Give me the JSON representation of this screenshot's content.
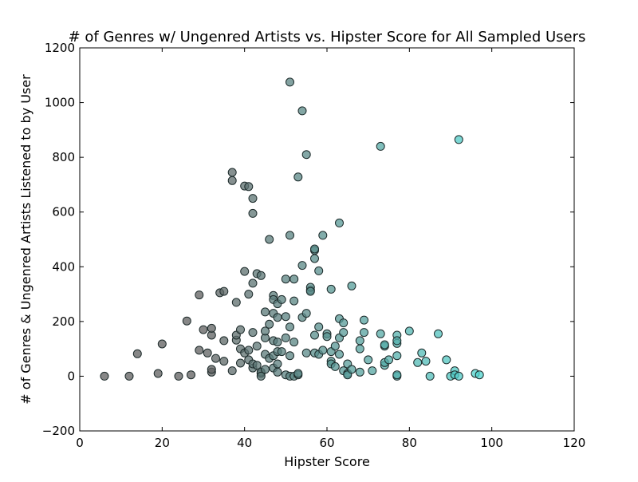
{
  "chart_data": {
    "type": "scatter",
    "title": "# of Genres w/ Ungenred Artists vs. Hipster Score for All Sampled Users",
    "xlabel": "Hipster Score",
    "ylabel": "# of Genres & Ungenred Artists Listened to by User",
    "xlim": [
      0,
      120
    ],
    "ylim": [
      -200,
      1200
    ],
    "x_ticks": [
      "0",
      "20",
      "40",
      "60",
      "80",
      "100",
      "120"
    ],
    "y_ticks": [
      "−200",
      "0",
      "200",
      "400",
      "600",
      "800",
      "1000",
      "1200"
    ],
    "grid": false,
    "legend": "none",
    "colors": {
      "low_score": "#5f5f5f",
      "high_score": "#4ed8d2",
      "marker_edge": "#1c2a2a",
      "axes": "#000000"
    },
    "points": [
      [
        6,
        0
      ],
      [
        12,
        0
      ],
      [
        14,
        82
      ],
      [
        19,
        10
      ],
      [
        20,
        118
      ],
      [
        24,
        0
      ],
      [
        26,
        202
      ],
      [
        27,
        5
      ],
      [
        29,
        95
      ],
      [
        29,
        297
      ],
      [
        30,
        170
      ],
      [
        31,
        85
      ],
      [
        32,
        15
      ],
      [
        32,
        150
      ],
      [
        32,
        175
      ],
      [
        32,
        25
      ],
      [
        33,
        65
      ],
      [
        34,
        305
      ],
      [
        35,
        310
      ],
      [
        35,
        130
      ],
      [
        35,
        55
      ],
      [
        37,
        20
      ],
      [
        37,
        745
      ],
      [
        37,
        715
      ],
      [
        38,
        270
      ],
      [
        38,
        132
      ],
      [
        38,
        150
      ],
      [
        39,
        48
      ],
      [
        39,
        170
      ],
      [
        39,
        100
      ],
      [
        40,
        85
      ],
      [
        40,
        383
      ],
      [
        40,
        695
      ],
      [
        41,
        300
      ],
      [
        41,
        60
      ],
      [
        41,
        95
      ],
      [
        41,
        693
      ],
      [
        42,
        650
      ],
      [
        42,
        595
      ],
      [
        42,
        30
      ],
      [
        42,
        340
      ],
      [
        42,
        160
      ],
      [
        42,
        45
      ],
      [
        43,
        375
      ],
      [
        43,
        40
      ],
      [
        43,
        110
      ],
      [
        44,
        368
      ],
      [
        44,
        10
      ],
      [
        44,
        15
      ],
      [
        44,
        0
      ],
      [
        45,
        140
      ],
      [
        45,
        165
      ],
      [
        45,
        235
      ],
      [
        45,
        80
      ],
      [
        45,
        25
      ],
      [
        46,
        500
      ],
      [
        46,
        190
      ],
      [
        46,
        65
      ],
      [
        47,
        295
      ],
      [
        47,
        280
      ],
      [
        47,
        230
      ],
      [
        47,
        130
      ],
      [
        47,
        75
      ],
      [
        47,
        30
      ],
      [
        48,
        265
      ],
      [
        48,
        215
      ],
      [
        48,
        125
      ],
      [
        48,
        90
      ],
      [
        48,
        15
      ],
      [
        48,
        45
      ],
      [
        49,
        280
      ],
      [
        49,
        90
      ],
      [
        50,
        218
      ],
      [
        50,
        355
      ],
      [
        50,
        140
      ],
      [
        50,
        5
      ],
      [
        51,
        1075
      ],
      [
        51,
        515
      ],
      [
        51,
        180
      ],
      [
        51,
        75
      ],
      [
        51,
        0
      ],
      [
        52,
        275
      ],
      [
        52,
        355
      ],
      [
        52,
        125
      ],
      [
        52,
        0
      ],
      [
        53,
        728
      ],
      [
        53,
        5
      ],
      [
        53,
        10
      ],
      [
        54,
        970
      ],
      [
        54,
        215
      ],
      [
        54,
        405
      ],
      [
        55,
        230
      ],
      [
        55,
        85
      ],
      [
        55,
        810
      ],
      [
        56,
        315
      ],
      [
        56,
        325
      ],
      [
        56,
        310
      ],
      [
        57,
        460
      ],
      [
        57,
        465
      ],
      [
        57,
        430
      ],
      [
        57,
        85
      ],
      [
        57,
        150
      ],
      [
        58,
        385
      ],
      [
        58,
        180
      ],
      [
        58,
        80
      ],
      [
        59,
        515
      ],
      [
        59,
        95
      ],
      [
        60,
        155
      ],
      [
        60,
        145
      ],
      [
        61,
        90
      ],
      [
        61,
        55
      ],
      [
        61,
        45
      ],
      [
        61,
        318
      ],
      [
        62,
        35
      ],
      [
        62,
        110
      ],
      [
        63,
        210
      ],
      [
        63,
        140
      ],
      [
        63,
        80
      ],
      [
        63,
        560
      ],
      [
        64,
        195
      ],
      [
        64,
        160
      ],
      [
        64,
        20
      ],
      [
        65,
        45
      ],
      [
        65,
        10
      ],
      [
        65,
        5
      ],
      [
        66,
        330
      ],
      [
        66,
        25
      ],
      [
        68,
        15
      ],
      [
        68,
        130
      ],
      [
        68,
        100
      ],
      [
        69,
        160
      ],
      [
        69,
        205
      ],
      [
        70,
        60
      ],
      [
        71,
        20
      ],
      [
        73,
        840
      ],
      [
        73,
        155
      ],
      [
        74,
        40
      ],
      [
        74,
        50
      ],
      [
        74,
        110
      ],
      [
        74,
        115
      ],
      [
        75,
        60
      ],
      [
        77,
        0
      ],
      [
        77,
        150
      ],
      [
        77,
        5
      ],
      [
        77,
        120
      ],
      [
        77,
        130
      ],
      [
        77,
        75
      ],
      [
        80,
        165
      ],
      [
        82,
        50
      ],
      [
        83,
        85
      ],
      [
        84,
        55
      ],
      [
        85,
        0
      ],
      [
        87,
        155
      ],
      [
        89,
        60
      ],
      [
        90,
        0
      ],
      [
        91,
        20
      ],
      [
        91,
        5
      ],
      [
        92,
        865
      ],
      [
        92,
        0
      ],
      [
        96,
        10
      ],
      [
        97,
        5
      ]
    ]
  }
}
